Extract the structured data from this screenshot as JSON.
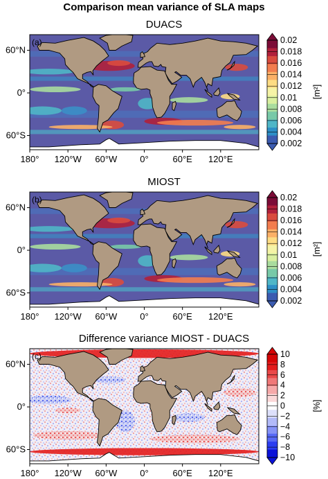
{
  "title": "Comparison mean variance of SLA maps",
  "panels": [
    {
      "letter": "(a)",
      "title": "DUACS",
      "colorbar": {
        "ticks": [
          "0.02",
          "0.018",
          "0.016",
          "0.014",
          "0.012",
          "0.01",
          "0.008",
          "0.006",
          "0.004",
          "0.002"
        ],
        "unit": "[m²]",
        "colors": [
          "#3b5bb0",
          "#2d8fc6",
          "#4fb6c7",
          "#78c9a8",
          "#a9dc9e",
          "#d9ef9f",
          "#f5f3a6",
          "#fddc84",
          "#fbb067",
          "#f27d4f",
          "#d94b3e",
          "#b0203b",
          "#7b0c37"
        ]
      },
      "background": "#5b5aa6"
    },
    {
      "letter": "(b)",
      "title": "MIOST",
      "colorbar": {
        "ticks": [
          "0.02",
          "0.018",
          "0.016",
          "0.014",
          "0.012",
          "0.01",
          "0.008",
          "0.006",
          "0.004",
          "0.002"
        ],
        "unit": "[m²]",
        "colors": [
          "#3b5bb0",
          "#2d8fc6",
          "#4fb6c7",
          "#78c9a8",
          "#a9dc9e",
          "#d9ef9f",
          "#f5f3a6",
          "#fddc84",
          "#fbb067",
          "#f27d4f",
          "#d94b3e",
          "#b0203b",
          "#7b0c37"
        ]
      },
      "background": "#5b5aa6"
    },
    {
      "letter": "(c)",
      "title": "Difference variance MIOST - DUACS",
      "colorbar": {
        "ticks": [
          "10",
          "8",
          "6",
          "4",
          "2",
          "0",
          "−2",
          "−4",
          "−6",
          "−8",
          "−10"
        ],
        "unit": "[%]",
        "colors": [
          "#0a12d8",
          "#2b3df0",
          "#5668f5",
          "#8592f7",
          "#b2baf8",
          "#dde0fb",
          "#ffffff",
          "#fbd8d8",
          "#f6a9a9",
          "#f07878",
          "#ea4848",
          "#e31c1c",
          "#d50606"
        ]
      },
      "background": "#e9e6f3"
    }
  ],
  "axes": {
    "lat_labels": [
      "60°N",
      "0°",
      "60°S"
    ],
    "lon_labels": [
      "180°",
      "120°W",
      "60°W",
      "0°",
      "60°E",
      "120°E"
    ]
  },
  "colors": {
    "land": "#b09a82",
    "coast": "#000000",
    "ice": "#ffffff"
  }
}
